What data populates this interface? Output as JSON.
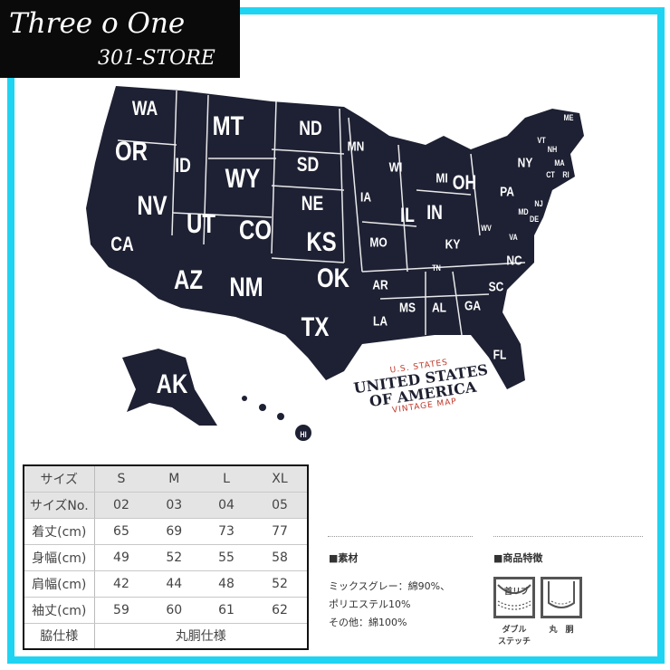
{
  "logo": {
    "line1": "Three o One",
    "line2": "301-STORE"
  },
  "colors": {
    "frame": "#1fd4f2",
    "map": "#1e2133",
    "accent": "#c0392b"
  },
  "map": {
    "states": [
      {
        "code": "WA",
        "size": "mid"
      },
      {
        "code": "OR",
        "size": "big"
      },
      {
        "code": "ID",
        "size": "mid"
      },
      {
        "code": "MT",
        "size": "big"
      },
      {
        "code": "ND",
        "size": "mid"
      },
      {
        "code": "SD",
        "size": "mid"
      },
      {
        "code": "WY",
        "size": "big"
      },
      {
        "code": "NE",
        "size": "mid"
      },
      {
        "code": "NV",
        "size": "big"
      },
      {
        "code": "UT",
        "size": "big"
      },
      {
        "code": "CO",
        "size": "big"
      },
      {
        "code": "KS",
        "size": "big"
      },
      {
        "code": "CA",
        "size": "mid"
      },
      {
        "code": "AZ",
        "size": "big"
      },
      {
        "code": "NM",
        "size": "big"
      },
      {
        "code": "OK",
        "size": "big"
      },
      {
        "code": "TX",
        "size": "big"
      },
      {
        "code": "MN",
        "size": "sm"
      },
      {
        "code": "IA",
        "size": "sm"
      },
      {
        "code": "MO",
        "size": "sm"
      },
      {
        "code": "AR",
        "size": "sm"
      },
      {
        "code": "LA",
        "size": "sm"
      },
      {
        "code": "WI",
        "size": "sm"
      },
      {
        "code": "IL",
        "size": "mid"
      },
      {
        "code": "MI",
        "size": "sm"
      },
      {
        "code": "IN",
        "size": "mid"
      },
      {
        "code": "OH",
        "size": "mid"
      },
      {
        "code": "KY",
        "size": "sm"
      },
      {
        "code": "TN",
        "size": "xs"
      },
      {
        "code": "MS",
        "size": "sm"
      },
      {
        "code": "AL",
        "size": "sm"
      },
      {
        "code": "GA",
        "size": "sm"
      },
      {
        "code": "SC",
        "size": "sm"
      },
      {
        "code": "NC",
        "size": "sm"
      },
      {
        "code": "FL",
        "size": "sm"
      },
      {
        "code": "VA",
        "size": "xs"
      },
      {
        "code": "WV",
        "size": "xs"
      },
      {
        "code": "PA",
        "size": "sm"
      },
      {
        "code": "NY",
        "size": "sm"
      },
      {
        "code": "ME",
        "size": "xs"
      },
      {
        "code": "VT",
        "size": "xs"
      },
      {
        "code": "NH",
        "size": "xs"
      },
      {
        "code": "MA",
        "size": "xs"
      },
      {
        "code": "CT",
        "size": "xs"
      },
      {
        "code": "RI",
        "size": "xs"
      },
      {
        "code": "NJ",
        "size": "xs"
      },
      {
        "code": "DE",
        "size": "xs"
      },
      {
        "code": "MD",
        "size": "xs"
      },
      {
        "code": "AK",
        "size": "big"
      },
      {
        "code": "HI",
        "size": "xs"
      }
    ],
    "title": {
      "top": "U.S. STATES",
      "line1": "UNITED STATES",
      "line2": "OF AMERICA",
      "bottom": "VINTAGE MAP"
    }
  },
  "size_table": {
    "rows": [
      [
        "サイズ",
        "S",
        "M",
        "L",
        "XL"
      ],
      [
        "サイズNo.",
        "02",
        "03",
        "04",
        "05"
      ],
      [
        "着丈(cm)",
        "65",
        "69",
        "73",
        "77"
      ],
      [
        "身幅(cm)",
        "49",
        "52",
        "55",
        "58"
      ],
      [
        "肩幅(cm)",
        "42",
        "44",
        "48",
        "52"
      ],
      [
        "袖丈(cm)",
        "59",
        "60",
        "61",
        "62"
      ]
    ],
    "footer": [
      "脇仕様",
      "丸胴仕様"
    ]
  },
  "material": {
    "heading": "■素材",
    "lines": [
      "ミックスグレー：綿90%、",
      "ポリエステル10%",
      "その他：綿100%"
    ]
  },
  "features": {
    "heading": "■商品特徴",
    "items": [
      {
        "icon_text": "首リブ",
        "caption1": "ダブル",
        "caption2": "ステッチ"
      },
      {
        "caption1": "丸　胴"
      }
    ]
  }
}
